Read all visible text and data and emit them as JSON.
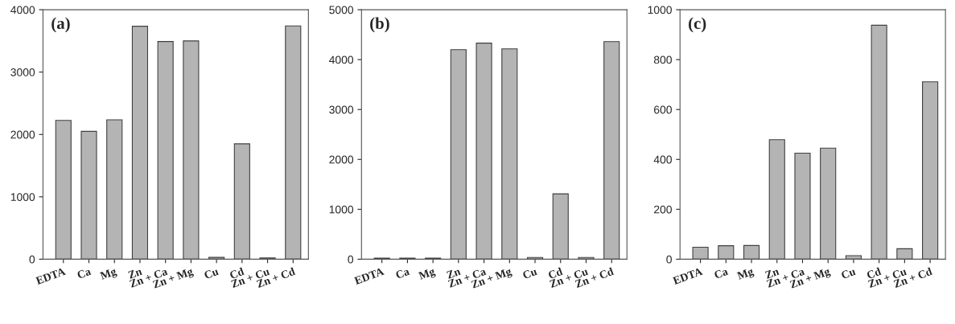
{
  "chart_data": [
    {
      "type": "bar",
      "annotations": [
        "(a)"
      ],
      "categories": [
        "EDTA",
        "Ca",
        "Mg",
        "Zn",
        "Zn + Ca",
        "Zn + Mg",
        "Cu",
        "Cd",
        "Zn + Cu",
        "Zn + Cd"
      ],
      "values": [
        2225,
        2050,
        2235,
        3735,
        3490,
        3500,
        30,
        1850,
        20,
        3740
      ],
      "color": "#b4b4b4",
      "ylim": [
        0,
        4000
      ],
      "yticks": [
        0,
        1000,
        2000,
        3000,
        4000
      ],
      "grid": false
    },
    {
      "type": "bar",
      "annotations": [
        "(b)"
      ],
      "categories": [
        "EDTA",
        "Ca",
        "Mg",
        "Zn",
        "Zn + Ca",
        "Zn + Mg",
        "Cu",
        "Cd",
        "Zn + Cu",
        "Zn + Cd"
      ],
      "values": [
        20,
        20,
        20,
        4200,
        4330,
        4215,
        35,
        1310,
        35,
        4360
      ],
      "color": "#b4b4b4",
      "ylim": [
        0,
        5000
      ],
      "yticks": [
        0,
        1000,
        2000,
        3000,
        4000,
        5000
      ],
      "grid": false
    },
    {
      "type": "bar",
      "annotations": [
        "(c)"
      ],
      "categories": [
        "EDTA",
        "Ca",
        "Mg",
        "Zn",
        "Zn + Ca",
        "Zn + Mg",
        "Cu",
        "Cd",
        "Zn + Cu",
        "Zn + Cd"
      ],
      "values": [
        48,
        54,
        55,
        479,
        425,
        445,
        14,
        938,
        42,
        711
      ],
      "color": "#b4b4b4",
      "ylim": [
        0,
        1000
      ],
      "yticks": [
        0,
        200,
        400,
        600,
        800,
        1000
      ],
      "grid": false
    }
  ]
}
